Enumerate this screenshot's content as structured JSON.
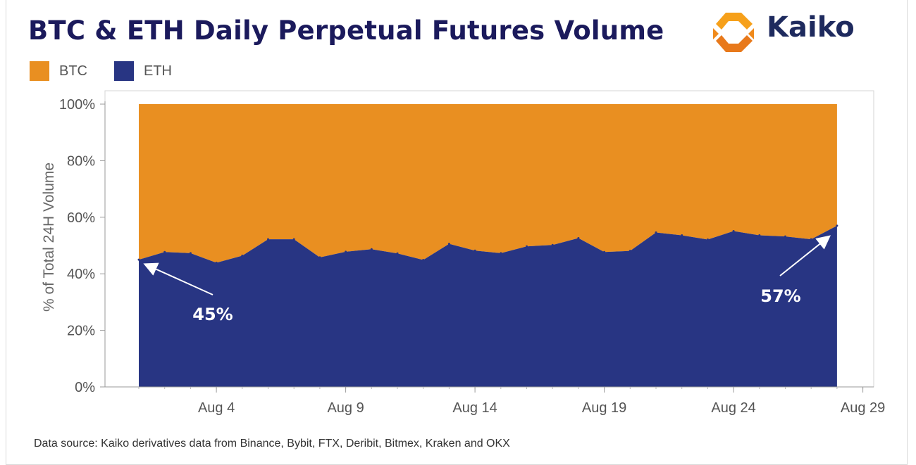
{
  "title": "BTC & ETH Daily Perpetual Futures Volume",
  "logo": {
    "name": "kaiko-logo-icon",
    "text": "Kaiko"
  },
  "legend": [
    {
      "label": "BTC",
      "color": "#e98f21"
    },
    {
      "label": "ETH",
      "color": "#283583"
    }
  ],
  "source": "Data source: Kaiko derivatives data from Binance, Bybit, FTX, Deribit, Bitmex, Kraken and OKX",
  "chart_data": {
    "type": "area",
    "stacked": true,
    "percent": true,
    "ylabel": "% of Total 24H Volume",
    "ylim": [
      0,
      100
    ],
    "y_ticks": [
      "0%",
      "20%",
      "40%",
      "60%",
      "80%",
      "100%"
    ],
    "x_tick_labels": [
      "Aug 4",
      "Aug 9",
      "Aug 14",
      "Aug 19",
      "Aug 24",
      "Aug 29"
    ],
    "x_tick_days": [
      4,
      9,
      14,
      19,
      24,
      29
    ],
    "x": [
      "Aug 1",
      "Aug 2",
      "Aug 3",
      "Aug 4",
      "Aug 5",
      "Aug 6",
      "Aug 7",
      "Aug 8",
      "Aug 9",
      "Aug 10",
      "Aug 11",
      "Aug 12",
      "Aug 13",
      "Aug 14",
      "Aug 15",
      "Aug 16",
      "Aug 17",
      "Aug 18",
      "Aug 19",
      "Aug 20",
      "Aug 21",
      "Aug 22",
      "Aug 23",
      "Aug 24",
      "Aug 25",
      "Aug 26",
      "Aug 27",
      "Aug 28"
    ],
    "series": [
      {
        "name": "ETH",
        "color": "#283583",
        "values": [
          45,
          47.7,
          47.3,
          43.9,
          46.4,
          52.2,
          52.2,
          45.8,
          47.8,
          48.7,
          47.2,
          44.9,
          50.6,
          48.2,
          47.3,
          49.7,
          50.2,
          52.6,
          47.7,
          48.1,
          54.6,
          53.6,
          52.1,
          55.1,
          53.6,
          53.2,
          52.2,
          57
        ]
      },
      {
        "name": "BTC",
        "color": "#e98f21",
        "values": [
          55,
          52.3,
          52.7,
          56.1,
          53.6,
          47.8,
          47.8,
          54.2,
          52.2,
          51.3,
          52.8,
          55.1,
          49.4,
          51.8,
          52.7,
          50.3,
          49.8,
          47.4,
          52.3,
          51.9,
          45.4,
          46.4,
          47.9,
          44.9,
          46.4,
          46.8,
          47.8,
          43
        ]
      }
    ],
    "annotations": [
      {
        "text": "45%",
        "x": "Aug 1",
        "y": 45
      },
      {
        "text": "57%",
        "x": "Aug 28",
        "y": 57
      }
    ],
    "grid": false
  }
}
